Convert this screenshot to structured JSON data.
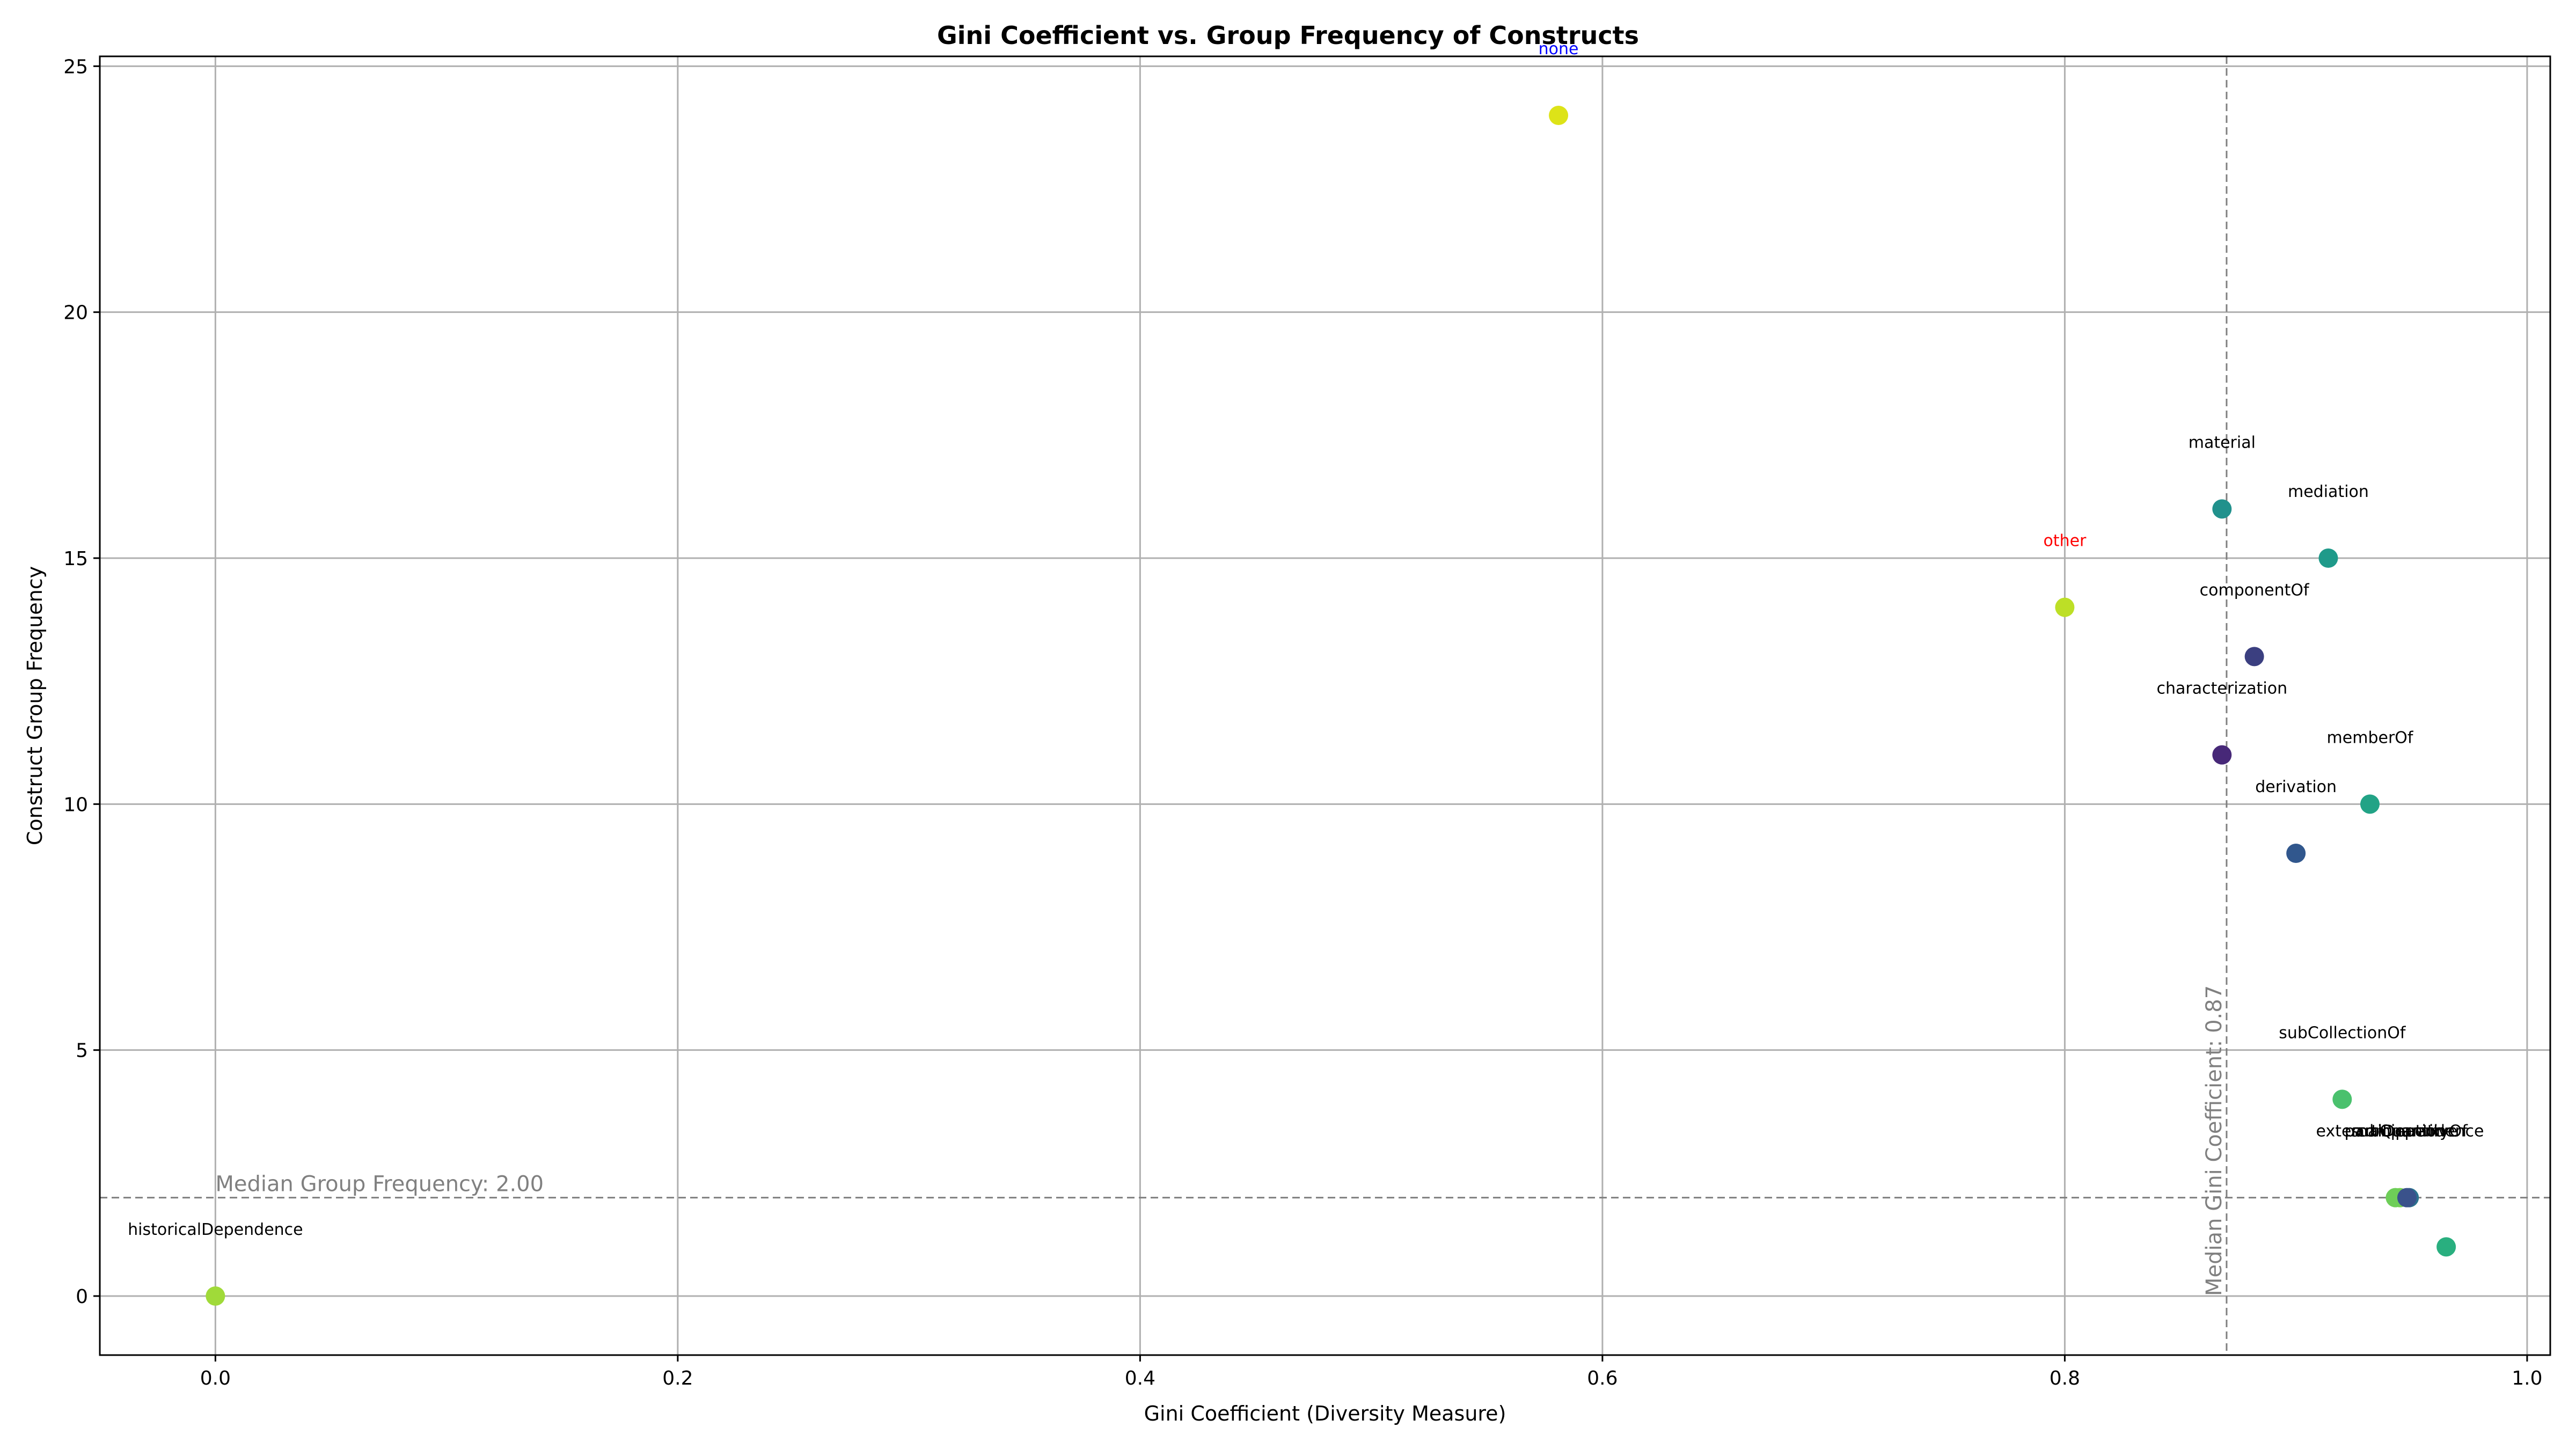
{
  "chart_data": {
    "type": "scatter",
    "title": "Gini Coefficient vs. Group Frequency of Constructs",
    "xlabel": "Gini Coefficient (Diversity Measure)",
    "ylabel": "Construct Group Frequency",
    "xlim": [
      -0.05,
      1.01
    ],
    "ylim": [
      -1.2,
      25.2
    ],
    "xticks": [
      0.0,
      0.2,
      0.4,
      0.6,
      0.8,
      1.0
    ],
    "xtick_labels": [
      "0.0",
      "0.2",
      "0.4",
      "0.6",
      "0.8",
      "1.0"
    ],
    "yticks": [
      0,
      5,
      10,
      15,
      20,
      25
    ],
    "ytick_labels": [
      "0",
      "5",
      "10",
      "15",
      "20",
      "25"
    ],
    "grid": true,
    "points": [
      {
        "label": "none",
        "x": 0.581,
        "y": 24,
        "color": "#dde318",
        "label_color": "#0000ff"
      },
      {
        "label": "material",
        "x": 0.868,
        "y": 16,
        "color": "#21918c",
        "label_color": "#000000"
      },
      {
        "label": "mediation",
        "x": 0.914,
        "y": 15,
        "color": "#1f9a8a",
        "label_color": "#000000"
      },
      {
        "label": "other",
        "x": 0.8,
        "y": 14,
        "color": "#bddf26",
        "label_color": "#ff0000"
      },
      {
        "label": "componentOf",
        "x": 0.882,
        "y": 13,
        "color": "#3b3f80",
        "label_color": "#000000"
      },
      {
        "label": "characterization",
        "x": 0.868,
        "y": 11,
        "color": "#472878",
        "label_color": "#000000"
      },
      {
        "label": "memberOf",
        "x": 0.932,
        "y": 10,
        "color": "#22a386",
        "label_color": "#000000"
      },
      {
        "label": "derivation",
        "x": 0.9,
        "y": 9,
        "color": "#31578d",
        "label_color": "#000000"
      },
      {
        "label": "subCollectionOf",
        "x": 0.92,
        "y": 4,
        "color": "#4ac16d",
        "label_color": "#000000"
      },
      {
        "label": "externalDependence",
        "x": 0.945,
        "y": 2,
        "color": "#7ad151",
        "label_color": "#000000"
      },
      {
        "label": "subQuantityOf",
        "x": 0.949,
        "y": 2,
        "color": "#2c728e",
        "label_color": "#000000"
      },
      {
        "label": "participation",
        "x": 0.943,
        "y": 2,
        "color": "#6ece58",
        "label_color": "#000000"
      },
      {
        "label": "comparative",
        "x": 0.948,
        "y": 2,
        "color": "#3a528b",
        "label_color": "#000000"
      },
      {
        "label": "",
        "x": 0.965,
        "y": 1,
        "color": "#29af7f",
        "label_color": "#000000"
      },
      {
        "label": "historicalDependence",
        "x": 0.0,
        "y": 0,
        "color": "#a0da39",
        "label_color": "#000000"
      }
    ],
    "reference_lines": [
      {
        "orientation": "vertical",
        "value": 0.87,
        "label": "Median Gini Coefficient: 0.87"
      },
      {
        "orientation": "horizontal",
        "value": 2.0,
        "label": "Median Group Frequency: 2.00"
      }
    ]
  }
}
